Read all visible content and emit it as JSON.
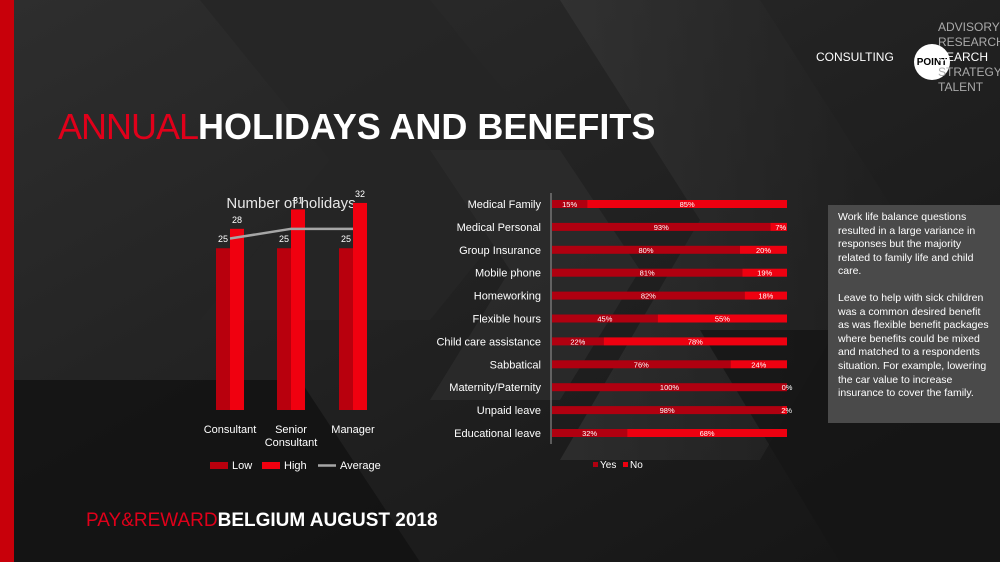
{
  "header": {
    "title_part1": "ANNUAL",
    "title_part2": "HOLIDAYS AND BENEFITS"
  },
  "brand": {
    "consulting": "CONSULTING",
    "point": "POINT",
    "services": [
      "ADVISORY",
      "RESEARCH",
      "SEARCH",
      "STRATEGY",
      "TALENT"
    ]
  },
  "footer": {
    "part1": "PAY&REWARD",
    "part2": "BELGIUM AUGUST 2018"
  },
  "notes": {
    "p1": "Work life balance questions resulted in a large variance in responses but the majority related to family life and child care.",
    "p2": "Leave to help with sick children was a common desired benefit as was flexible benefit packages where benefits could be mixed and matched to a respondents situation. For example, lowering the car value to increase insurance to cover the family."
  },
  "colors": {
    "accent": "#e0001a",
    "low": "#b8000d",
    "high": "#f0000f",
    "average": "#a6a6a6",
    "yes": "#b00010",
    "no": "#ee0010",
    "background": "#1b1b1b"
  },
  "chart_data": [
    {
      "type": "bar",
      "title": "Number of holidays",
      "categories": [
        "Consultant",
        "Senior Consultant",
        "Manager"
      ],
      "category_lines": [
        [
          "Consultant"
        ],
        [
          "Senior",
          "Consultant"
        ],
        [
          "Manager"
        ]
      ],
      "series": [
        {
          "name": "Low",
          "type": "bar",
          "values": [
            25,
            25,
            25
          ]
        },
        {
          "name": "High",
          "type": "bar",
          "values": [
            28,
            31,
            32
          ]
        },
        {
          "name": "Average",
          "type": "line",
          "values": [
            26.5,
            28,
            28
          ]
        }
      ],
      "ylim": [
        0,
        34
      ],
      "legend_position": "bottom",
      "grid": false
    },
    {
      "type": "bar",
      "orientation": "horizontal",
      "stacked": true,
      "categories": [
        "Medical Family",
        "Medical Personal",
        "Group Insurance",
        "Mobile phone",
        "Homeworking",
        "Flexible hours",
        "Child care assistance",
        "Sabbatical",
        "Maternity/Paternity",
        "Unpaid leave",
        "Educational leave"
      ],
      "series": [
        {
          "name": "Yes",
          "values": [
            15,
            93,
            80,
            81,
            82,
            45,
            22,
            76,
            100,
            98,
            32
          ],
          "labels": [
            "15%",
            "93%",
            "80%",
            "81%",
            "82%",
            "45%",
            "22%",
            "76%",
            "100%",
            "98%",
            "32%"
          ]
        },
        {
          "name": "No",
          "values": [
            85,
            7,
            20,
            19,
            18,
            55,
            78,
            24,
            0,
            2,
            68
          ],
          "labels": [
            "85%",
            "7%",
            "20%",
            "19%",
            "18%",
            "55%",
            "78%",
            "24%",
            "0%",
            "2%",
            "68%"
          ]
        }
      ],
      "xlim": [
        0,
        100
      ],
      "legend_position": "bottom",
      "grid": false
    }
  ]
}
